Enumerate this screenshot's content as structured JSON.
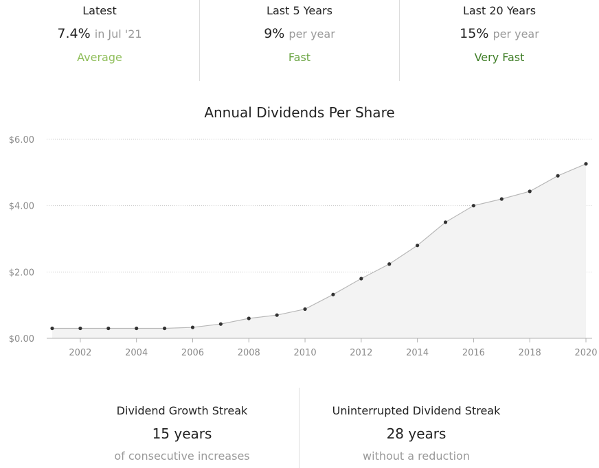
{
  "summary": {
    "latest": {
      "label": "Latest",
      "value": "7.4%",
      "sub": "in Jul '21",
      "rating": "Average",
      "rating_color": "#8fbe5a"
    },
    "five_year": {
      "label": "Last 5 Years",
      "value": "9%",
      "sub": "per year",
      "rating": "Fast",
      "rating_color": "#6aa442"
    },
    "twenty_year": {
      "label": "Last 20 Years",
      "value": "15%",
      "sub": "per year",
      "rating": "Very Fast",
      "rating_color": "#3e7d26"
    }
  },
  "chart_data": {
    "type": "area",
    "title": "Annual Dividends Per Share",
    "xlabel": "",
    "ylabel": "",
    "x": [
      2001,
      2002,
      2003,
      2004,
      2005,
      2006,
      2007,
      2008,
      2009,
      2010,
      2011,
      2012,
      2013,
      2014,
      2015,
      2016,
      2017,
      2018,
      2019,
      2020
    ],
    "series": [
      {
        "values": [
          0.3,
          0.3,
          0.3,
          0.3,
          0.3,
          0.33,
          0.43,
          0.6,
          0.7,
          0.88,
          1.32,
          1.8,
          2.24,
          2.8,
          3.5,
          4.0,
          4.2,
          4.43,
          4.9,
          5.26
        ]
      }
    ],
    "xlim": [
      2000.8,
      2020.2
    ],
    "ylim": [
      0,
      6
    ],
    "y_ticks": [
      0,
      2,
      4,
      6
    ],
    "y_tick_labels": [
      "$0.00",
      "$2.00",
      "$4.00",
      "$6.00"
    ],
    "x_ticks": [
      2002,
      2004,
      2006,
      2008,
      2010,
      2012,
      2014,
      2016,
      2018,
      2020
    ],
    "grid": true,
    "line_color": "#b8b8b8",
    "fill_color": "#f3f3f3",
    "point_color": "#333333"
  },
  "streaks": {
    "growth": {
      "title": "Dividend Growth Streak",
      "value": "15 years",
      "sub": "of consecutive increases"
    },
    "uninterrupted": {
      "title": "Uninterrupted Dividend Streak",
      "value": "28 years",
      "sub": "without a reduction"
    }
  }
}
